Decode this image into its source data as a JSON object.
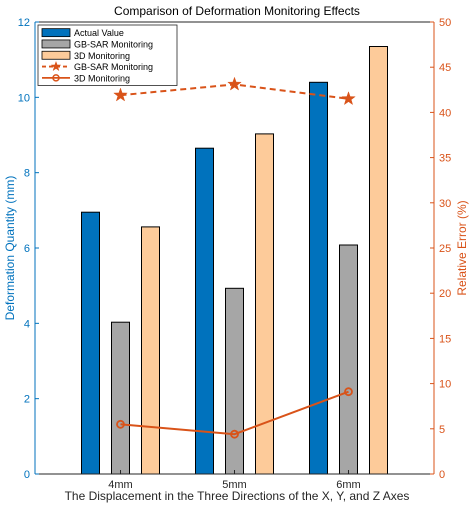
{
  "chart_data": {
    "type": "bar",
    "title": "Comparison of Deformation Monitoring Effects",
    "xlabel": "The Displacement in the Three Directions of the X, Y, and Z Axes",
    "ylabel_left": "Deformation Quantity (mm)",
    "ylabel_right": "Relative Error (%)",
    "categories": [
      "4mm",
      "5mm",
      "6mm"
    ],
    "ylim_left": [
      0,
      12
    ],
    "yticks_left": [
      "0",
      "2",
      "4",
      "6",
      "8",
      "10",
      "12"
    ],
    "ylim_right": [
      0,
      50
    ],
    "yticks_right": [
      "0",
      "5",
      "10",
      "15",
      "20",
      "25",
      "30",
      "35",
      "40",
      "45",
      "50"
    ],
    "grid": false,
    "legend_position": "top-left",
    "bar_series": [
      {
        "name": "Actual Value",
        "axis": "left",
        "color": "#0072BD",
        "values": [
          6.95,
          8.65,
          10.4
        ]
      },
      {
        "name": "GB-SAR Monitoring",
        "axis": "left",
        "color": "#A6A6A6",
        "values": [
          4.03,
          4.93,
          6.08
        ]
      },
      {
        "name": "3D Monitoring",
        "axis": "left",
        "color": "#FDCB9A",
        "values": [
          6.56,
          9.03,
          11.35
        ]
      }
    ],
    "line_series": [
      {
        "name": "GB-SAR Monitoring",
        "axis": "right",
        "color": "#D95319",
        "style": "dashed",
        "marker": "star",
        "values": [
          41.9,
          43.1,
          41.5
        ]
      },
      {
        "name": "3D Monitoring",
        "axis": "right",
        "color": "#D95319",
        "style": "solid",
        "marker": "circle",
        "values": [
          5.5,
          4.4,
          9.1
        ]
      }
    ],
    "colors": {
      "left_axis": "#0072BD",
      "right_axis": "#D95319",
      "frame": "#262626"
    }
  }
}
